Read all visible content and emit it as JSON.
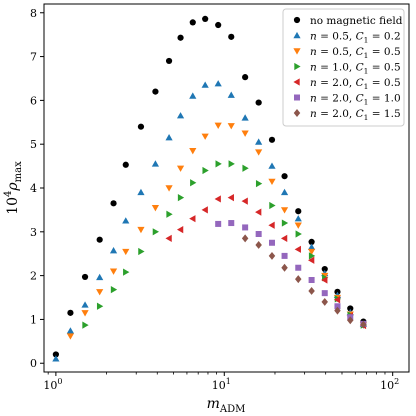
{
  "chart_data": {
    "type": "scatter",
    "title": "",
    "xlabel": "m_ADM",
    "ylabel": "10^4 ρ_max",
    "xscale": "log",
    "xlim": [
      0.85,
      125
    ],
    "ylim": [
      -0.2,
      8.2
    ],
    "xticks": [
      {
        "value": 1,
        "label": "10^0"
      },
      {
        "value": 10,
        "label": "10^1"
      },
      {
        "value": 100,
        "label": "10^2"
      }
    ],
    "yticks": [
      0,
      1,
      2,
      3,
      4,
      5,
      6,
      7,
      8
    ],
    "grid": false,
    "legend_position": "top-right",
    "series": [
      {
        "name": "no magnetic field",
        "marker": "circle",
        "color": "#000000",
        "points": [
          [
            1.0,
            0.2
          ],
          [
            1.22,
            1.15
          ],
          [
            1.49,
            1.97
          ],
          [
            1.82,
            2.82
          ],
          [
            2.2,
            3.65
          ],
          [
            2.6,
            4.53
          ],
          [
            3.2,
            5.4
          ],
          [
            3.9,
            6.2
          ],
          [
            4.7,
            6.9
          ],
          [
            5.5,
            7.43
          ],
          [
            6.5,
            7.78
          ],
          [
            7.7,
            7.86
          ],
          [
            9.2,
            7.72
          ],
          [
            11.0,
            7.45
          ],
          [
            13.3,
            6.53
          ],
          [
            16.0,
            5.95
          ],
          [
            19.2,
            5.1
          ],
          [
            22.8,
            4.27
          ],
          [
            27.5,
            3.47
          ],
          [
            33.0,
            2.77
          ],
          [
            39.5,
            2.15
          ],
          [
            47.0,
            1.63
          ],
          [
            56.0,
            1.25
          ],
          [
            67.0,
            0.95
          ]
        ]
      },
      {
        "name": "n=0.5, C_1=0.2",
        "marker": "triangle-up",
        "color": "#1f77b4",
        "points": [
          [
            1.0,
            0.1
          ],
          [
            1.22,
            0.74
          ],
          [
            1.49,
            1.33
          ],
          [
            1.82,
            1.96
          ],
          [
            2.2,
            2.57
          ],
          [
            2.6,
            3.25
          ],
          [
            3.2,
            3.9
          ],
          [
            3.9,
            4.55
          ],
          [
            4.7,
            5.15
          ],
          [
            5.5,
            5.65
          ],
          [
            6.5,
            6.1
          ],
          [
            7.7,
            6.35
          ],
          [
            9.2,
            6.38
          ],
          [
            11.0,
            6.12
          ],
          [
            13.3,
            5.6
          ],
          [
            16.0,
            5.05
          ],
          [
            19.2,
            4.5
          ],
          [
            22.8,
            3.9
          ],
          [
            27.5,
            3.3
          ],
          [
            33.0,
            2.65
          ],
          [
            39.5,
            2.05
          ],
          [
            47.0,
            1.55
          ],
          [
            56.0,
            1.16
          ],
          [
            67.0,
            0.89
          ]
        ]
      },
      {
        "name": "n=0.5, C_1=0.5",
        "marker": "triangle-down",
        "color": "#ff7f0e",
        "points": [
          [
            1.22,
            0.62
          ],
          [
            1.49,
            1.15
          ],
          [
            1.82,
            1.63
          ],
          [
            2.2,
            2.1
          ],
          [
            2.6,
            2.55
          ],
          [
            3.2,
            3.05
          ],
          [
            3.9,
            3.55
          ],
          [
            4.7,
            4.0
          ],
          [
            5.5,
            4.45
          ],
          [
            6.5,
            4.85
          ],
          [
            7.7,
            5.18
          ],
          [
            9.2,
            5.43
          ],
          [
            11.0,
            5.42
          ],
          [
            13.3,
            5.25
          ],
          [
            16.0,
            4.82
          ],
          [
            19.2,
            4.15
          ],
          [
            22.8,
            3.5
          ],
          [
            27.5,
            3.15
          ],
          [
            33.0,
            2.55
          ],
          [
            39.5,
            2.0
          ],
          [
            47.0,
            1.5
          ],
          [
            56.0,
            1.12
          ],
          [
            67.0,
            0.88
          ]
        ]
      },
      {
        "name": "n=1.0, C_1=0.5",
        "marker": "triangle-right",
        "color": "#2ca02c",
        "points": [
          [
            1.49,
            0.87
          ],
          [
            1.82,
            1.3
          ],
          [
            2.2,
            1.68
          ],
          [
            2.6,
            2.08
          ],
          [
            3.2,
            2.55
          ],
          [
            3.9,
            3.0
          ],
          [
            4.7,
            3.4
          ],
          [
            5.5,
            3.78
          ],
          [
            6.5,
            4.12
          ],
          [
            7.7,
            4.4
          ],
          [
            9.2,
            4.55
          ],
          [
            11.0,
            4.55
          ],
          [
            13.3,
            4.45
          ],
          [
            16.0,
            4.1
          ],
          [
            19.2,
            3.6
          ],
          [
            22.8,
            3.2
          ],
          [
            27.5,
            2.95
          ],
          [
            33.0,
            2.45
          ],
          [
            39.5,
            1.95
          ],
          [
            47.0,
            1.47
          ],
          [
            56.0,
            1.1
          ],
          [
            67.0,
            0.87
          ]
        ]
      },
      {
        "name": "n=2.0, C_1=0.5",
        "marker": "triangle-left",
        "color": "#d62728",
        "points": [
          [
            4.7,
            2.85
          ],
          [
            5.5,
            3.05
          ],
          [
            6.5,
            3.3
          ],
          [
            7.7,
            3.5
          ],
          [
            9.2,
            3.75
          ],
          [
            11.0,
            3.78
          ],
          [
            13.3,
            3.7
          ],
          [
            16.0,
            3.45
          ],
          [
            19.2,
            3.15
          ],
          [
            22.8,
            2.85
          ],
          [
            27.5,
            2.6
          ],
          [
            33.0,
            2.35
          ],
          [
            39.5,
            1.9
          ],
          [
            47.0,
            1.45
          ],
          [
            56.0,
            1.08
          ],
          [
            67.0,
            0.86
          ]
        ]
      },
      {
        "name": "n=2.0, C_1=1.0",
        "marker": "square",
        "color": "#9467bd",
        "points": [
          [
            9.2,
            3.18
          ],
          [
            11.0,
            3.2
          ],
          [
            13.3,
            3.1
          ],
          [
            16.0,
            2.95
          ],
          [
            19.2,
            2.75
          ],
          [
            22.8,
            2.45
          ],
          [
            27.5,
            2.18
          ],
          [
            33.0,
            1.9
          ],
          [
            39.5,
            1.6
          ],
          [
            47.0,
            1.3
          ],
          [
            56.0,
            1.05
          ],
          [
            67.0,
            0.9
          ]
        ]
      },
      {
        "name": "n=2.0, C_1=1.5",
        "marker": "diamond",
        "color": "#8c564b",
        "points": [
          [
            13.3,
            2.85
          ],
          [
            16.0,
            2.7
          ],
          [
            19.2,
            2.45
          ],
          [
            22.8,
            2.18
          ],
          [
            27.5,
            1.92
          ],
          [
            33.0,
            1.65
          ],
          [
            39.5,
            1.4
          ],
          [
            47.0,
            1.2
          ],
          [
            56.0,
            0.98
          ],
          [
            67.0,
            0.88
          ]
        ]
      }
    ]
  },
  "legend": {
    "items": [
      {
        "pre": "no magnetic field",
        "c": "",
        "eq2": ""
      },
      {
        "pre": "n = 0.5, ",
        "c": "C",
        "eq2": " = 0.2"
      },
      {
        "pre": "n = 0.5, ",
        "c": "C",
        "eq2": " = 0.5"
      },
      {
        "pre": "n = 1.0, ",
        "c": "C",
        "eq2": " = 0.5"
      },
      {
        "pre": "n = 2.0, ",
        "c": "C",
        "eq2": " = 0.5"
      },
      {
        "pre": "n = 2.0, ",
        "c": "C",
        "eq2": " = 1.0"
      },
      {
        "pre": "n = 2.0, ",
        "c": "C",
        "eq2": " = 1.5"
      }
    ]
  }
}
